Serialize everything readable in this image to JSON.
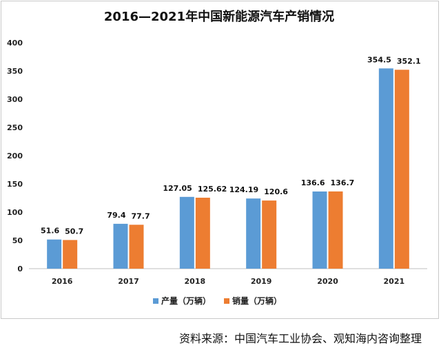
{
  "title": "2016—2021年中国新能源汽车产销情况",
  "source": "资料来源：中国汽车工业协会、观知海内咨询整理",
  "chart_data": {
    "type": "bar",
    "title": "2016—2021年中国新能源汽车产销情况",
    "categories": [
      "2016",
      "2017",
      "2018",
      "2019",
      "2020",
      "2021"
    ],
    "series": [
      {
        "name": "产量（万辆）",
        "color": "#5b9bd5",
        "values": [
          51.6,
          79.4,
          127.05,
          124.19,
          136.6,
          354.5
        ],
        "labels": [
          "51.6",
          "79.4",
          "127.05",
          "124.19",
          "136.6",
          "354.5"
        ]
      },
      {
        "name": "销量（万辆）",
        "color": "#ed7d31",
        "values": [
          50.7,
          77.7,
          125.62,
          120.6,
          136.7,
          352.1
        ],
        "labels": [
          "50.7",
          "77.7",
          "125.62",
          "120.6",
          "136.7",
          "352.1"
        ]
      }
    ],
    "ylim": [
      0,
      400
    ],
    "yticks": [
      "0",
      "50",
      "100",
      "150",
      "200",
      "250",
      "300",
      "350",
      "400"
    ],
    "grid": false,
    "legend": "bottom"
  }
}
